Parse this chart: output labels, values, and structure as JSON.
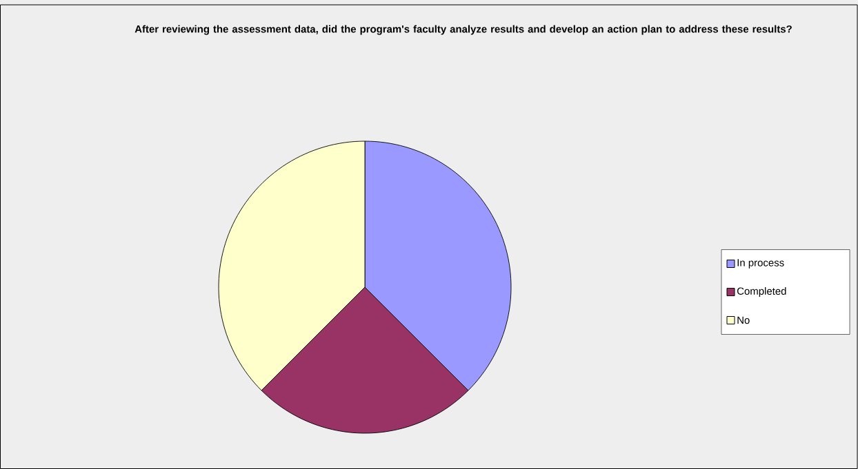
{
  "chart_data": {
    "type": "pie",
    "title": "After reviewing the assessment data, did the program's faculty analyze results and develop an action plan to address these results?",
    "categories": [
      "In process",
      "Completed",
      "No"
    ],
    "values": [
      37.5,
      25,
      37.5
    ],
    "colors": [
      "#9999ff",
      "#993366",
      "#ffffcc"
    ],
    "legend": "right"
  }
}
